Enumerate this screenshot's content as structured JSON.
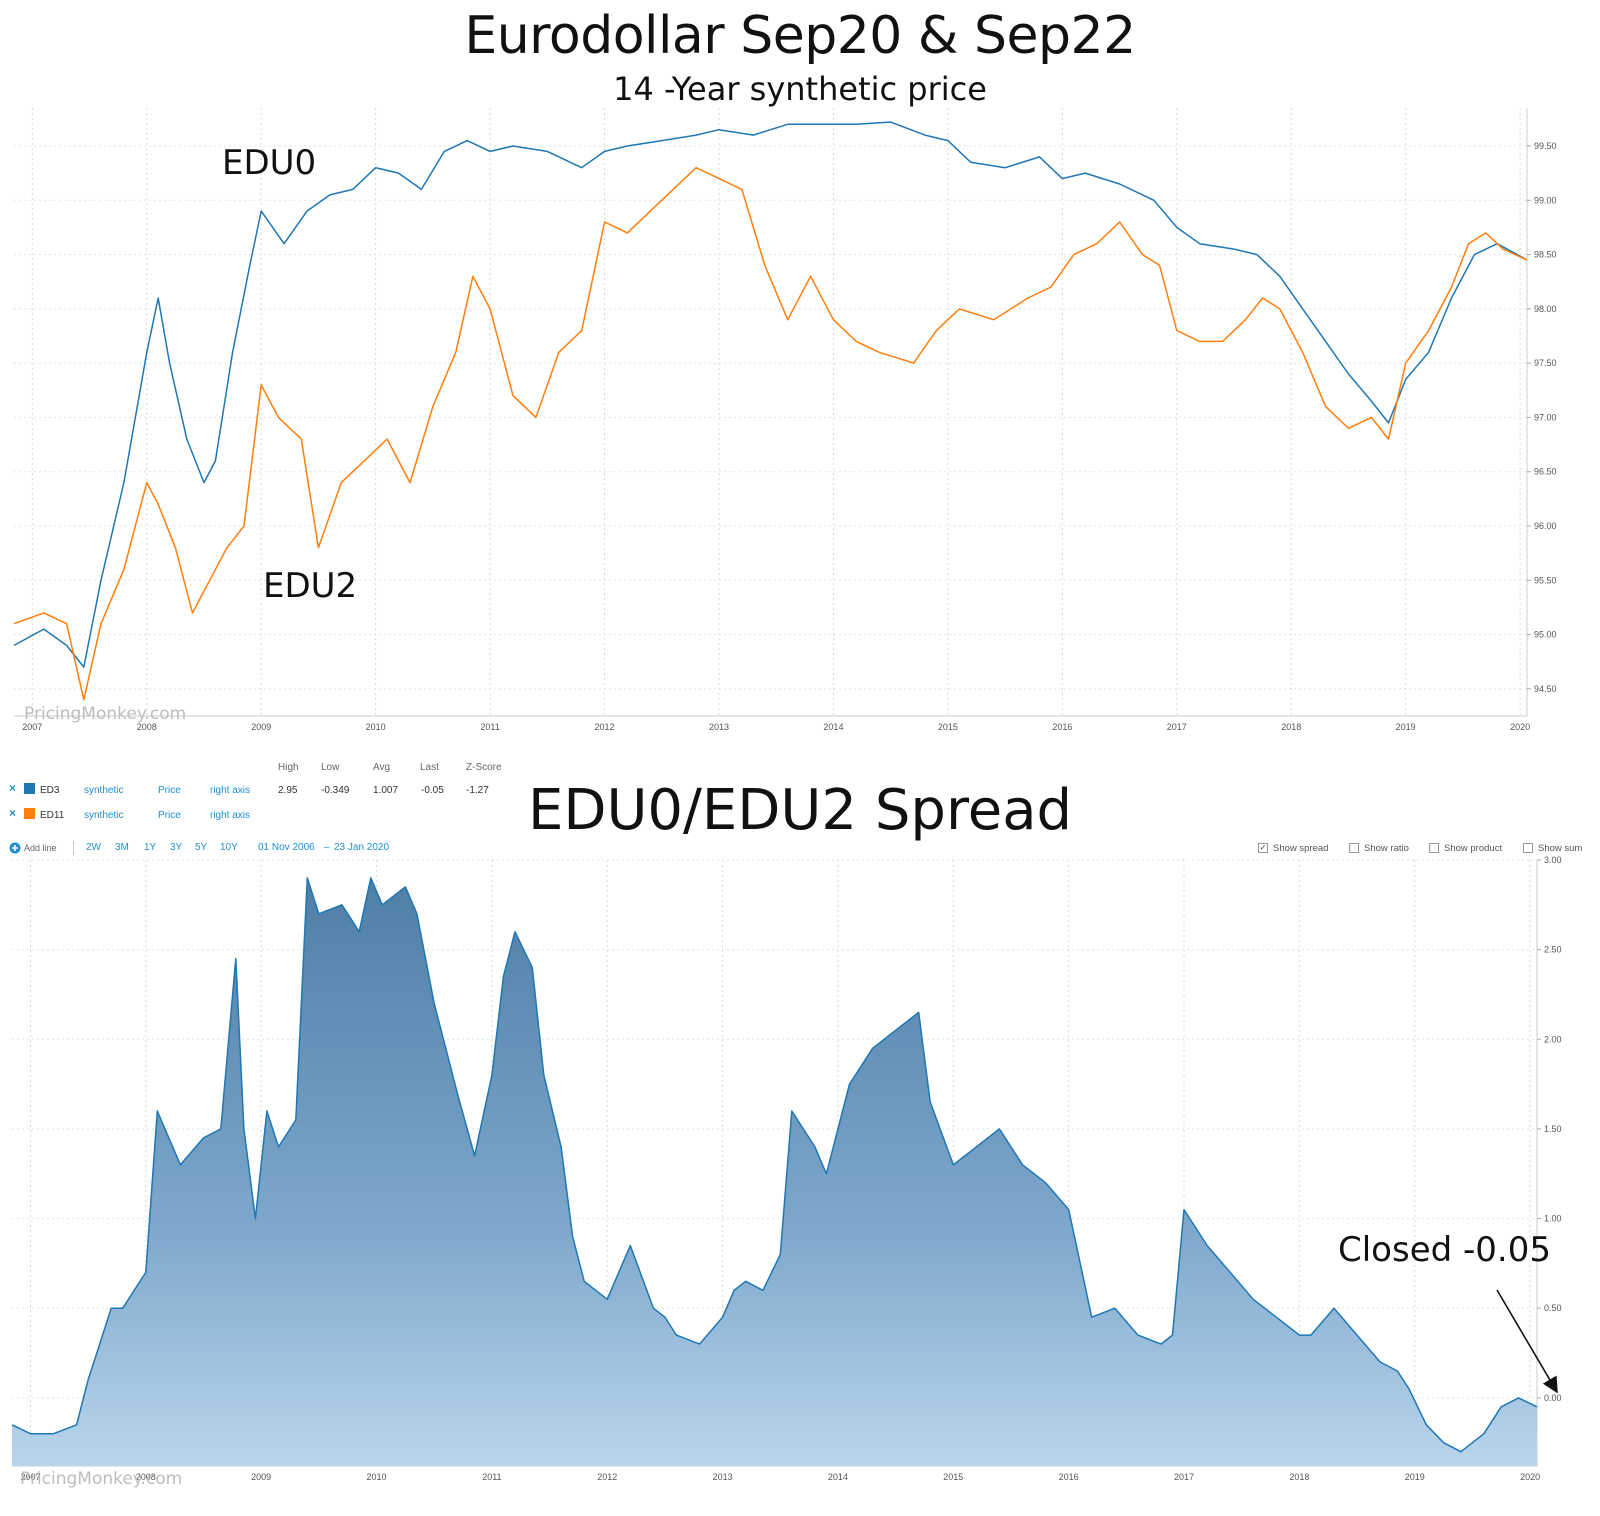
{
  "title": "Eurodollar Sep20 & Sep22",
  "subtitle": "14 -Year synthetic price",
  "annotations": {
    "edu0": "EDU0",
    "edu2": "EDU2",
    "spread_title": "EDU0/EDU2 Spread",
    "closed": "Closed -0.05"
  },
  "watermark": "PricingMonkey.com",
  "legend": {
    "headers": [
      "High",
      "Low",
      "Avg",
      "Last",
      "Z-Score"
    ],
    "rows": [
      {
        "remove": "×",
        "name": "ED3",
        "color": "#1f77b4",
        "type": "synthetic",
        "field": "Price",
        "axis": "right axis",
        "stats": [
          "2.95",
          "-0.349",
          "1.007",
          "-0.05",
          "-1.27"
        ]
      },
      {
        "remove": "×",
        "name": "ED11",
        "color": "#ff7f0e",
        "type": "synthetic",
        "field": "Price",
        "axis": "right axis",
        "stats": []
      }
    ]
  },
  "toolbar": {
    "add_line": "Add line",
    "ranges": [
      "2W",
      "3M",
      "1Y",
      "3Y",
      "5Y",
      "10Y"
    ],
    "date_from": "01 Nov 2006",
    "date_sep": "–",
    "date_to": "23 Jan 2020",
    "options": [
      {
        "label": "Show spread",
        "checked": true
      },
      {
        "label": "Show ratio",
        "checked": false
      },
      {
        "label": "Show product",
        "checked": false
      },
      {
        "label": "Show sum",
        "checked": false
      }
    ]
  },
  "chart_data": [
    {
      "type": "line",
      "x_ticks": [
        "2007",
        "2008",
        "2009",
        "2010",
        "2011",
        "2012",
        "2013",
        "2014",
        "2015",
        "2016",
        "2017",
        "2018",
        "2019",
        "2020"
      ],
      "y_ticks": [
        "94.50",
        "95.00",
        "95.50",
        "96.00",
        "96.50",
        "97.00",
        "97.50",
        "98.00",
        "98.50",
        "99.00",
        "99.50"
      ],
      "xlim": [
        2006.84,
        2020.06
      ],
      "ylim": [
        94.25,
        99.85
      ],
      "grid": true,
      "series": [
        {
          "name": "EDU0",
          "color": "#1f77b4",
          "x": [
            2006.84,
            2007.1,
            2007.3,
            2007.45,
            2007.6,
            2007.8,
            2008.0,
            2008.1,
            2008.2,
            2008.35,
            2008.5,
            2008.6,
            2008.75,
            2008.9,
            2009.0,
            2009.2,
            2009.4,
            2009.6,
            2009.8,
            2010.0,
            2010.2,
            2010.4,
            2010.6,
            2010.8,
            2011.0,
            2011.2,
            2011.5,
            2011.8,
            2012.0,
            2012.2,
            2012.5,
            2012.8,
            2013.0,
            2013.3,
            2013.6,
            2013.9,
            2014.2,
            2014.5,
            2014.8,
            2015.0,
            2015.2,
            2015.5,
            2015.8,
            2016.0,
            2016.2,
            2016.5,
            2016.8,
            2017.0,
            2017.2,
            2017.5,
            2017.7,
            2017.9,
            2018.1,
            2018.3,
            2018.5,
            2018.7,
            2018.85,
            2019.0,
            2019.2,
            2019.4,
            2019.6,
            2019.8,
            2020.06
          ],
          "y": [
            94.9,
            95.05,
            94.9,
            94.7,
            95.5,
            96.4,
            97.6,
            98.1,
            97.5,
            96.8,
            96.4,
            96.6,
            97.6,
            98.4,
            98.9,
            98.6,
            98.9,
            99.05,
            99.1,
            99.3,
            99.25,
            99.1,
            99.45,
            99.55,
            99.45,
            99.5,
            99.45,
            99.3,
            99.45,
            99.5,
            99.55,
            99.6,
            99.65,
            99.6,
            99.7,
            99.7,
            99.7,
            99.72,
            99.6,
            99.55,
            99.35,
            99.3,
            99.4,
            99.2,
            99.25,
            99.15,
            99.0,
            98.75,
            98.6,
            98.55,
            98.5,
            98.3,
            98.0,
            97.7,
            97.4,
            97.15,
            96.95,
            97.35,
            97.6,
            98.1,
            98.5,
            98.6,
            98.45
          ]
        },
        {
          "name": "EDU2",
          "color": "#ff7f0e",
          "x": [
            2006.84,
            2007.1,
            2007.3,
            2007.45,
            2007.6,
            2007.8,
            2008.0,
            2008.1,
            2008.25,
            2008.4,
            2008.55,
            2008.7,
            2008.85,
            2009.0,
            2009.15,
            2009.35,
            2009.5,
            2009.7,
            2009.9,
            2010.1,
            2010.3,
            2010.5,
            2010.7,
            2010.85,
            2011.0,
            2011.2,
            2011.4,
            2011.6,
            2011.8,
            2012.0,
            2012.2,
            2012.4,
            2012.6,
            2012.8,
            2013.0,
            2013.2,
            2013.4,
            2013.6,
            2013.8,
            2014.0,
            2014.2,
            2014.4,
            2014.7,
            2014.9,
            2015.1,
            2015.4,
            2015.7,
            2015.9,
            2016.1,
            2016.3,
            2016.5,
            2016.7,
            2016.85,
            2017.0,
            2017.2,
            2017.4,
            2017.6,
            2017.75,
            2017.9,
            2018.1,
            2018.3,
            2018.5,
            2018.7,
            2018.85,
            2019.0,
            2019.2,
            2019.4,
            2019.55,
            2019.7,
            2019.85,
            2020.06
          ],
          "y": [
            95.1,
            95.2,
            95.1,
            94.4,
            95.1,
            95.6,
            96.4,
            96.2,
            95.8,
            95.2,
            95.5,
            95.8,
            96.0,
            97.3,
            97.0,
            96.8,
            95.8,
            96.4,
            96.6,
            96.8,
            96.4,
            97.1,
            97.6,
            98.3,
            98.0,
            97.2,
            97.0,
            97.6,
            97.8,
            98.8,
            98.7,
            98.9,
            99.1,
            99.3,
            99.2,
            99.1,
            98.4,
            97.9,
            98.3,
            97.9,
            97.7,
            97.6,
            97.5,
            97.8,
            98.0,
            97.9,
            98.1,
            98.2,
            98.5,
            98.6,
            98.8,
            98.5,
            98.4,
            97.8,
            97.7,
            97.7,
            97.9,
            98.1,
            98.0,
            97.6,
            97.1,
            96.9,
            97.0,
            96.8,
            97.5,
            97.8,
            98.2,
            98.6,
            98.7,
            98.55,
            98.45
          ]
        }
      ]
    },
    {
      "type": "area",
      "x_ticks": [
        "2007",
        "2008",
        "2009",
        "2010",
        "2011",
        "2012",
        "2013",
        "2014",
        "2015",
        "2016",
        "2017",
        "2018",
        "2019",
        "2020"
      ],
      "y_ticks": [
        "0.00",
        "0.50",
        "1.00",
        "1.50",
        "2.00",
        "2.50",
        "3.00"
      ],
      "xlim": [
        2006.84,
        2020.06
      ],
      "ylim": [
        -0.38,
        3.0
      ],
      "grid": true,
      "series": [
        {
          "name": "ED3",
          "color": "#1f77b4",
          "x": [
            2006.84,
            2007.0,
            2007.2,
            2007.4,
            2007.5,
            2007.6,
            2007.7,
            2007.8,
            2008.0,
            2008.1,
            2008.3,
            2008.5,
            2008.65,
            2008.78,
            2008.85,
            2008.95,
            2009.05,
            2009.15,
            2009.3,
            2009.4,
            2009.5,
            2009.7,
            2009.85,
            2009.95,
            2010.05,
            2010.15,
            2010.25,
            2010.35,
            2010.5,
            2010.7,
            2010.85,
            2011.0,
            2011.1,
            2011.2,
            2011.35,
            2011.45,
            2011.6,
            2011.7,
            2011.8,
            2012.0,
            2012.2,
            2012.4,
            2012.5,
            2012.6,
            2012.8,
            2013.0,
            2013.1,
            2013.2,
            2013.35,
            2013.5,
            2013.6,
            2013.8,
            2013.9,
            2014.1,
            2014.3,
            2014.5,
            2014.7,
            2014.8,
            2015.0,
            2015.2,
            2015.4,
            2015.6,
            2015.8,
            2016.0,
            2016.2,
            2016.4,
            2016.6,
            2016.8,
            2016.9,
            2017.0,
            2017.2,
            2017.4,
            2017.6,
            2017.8,
            2018.0,
            2018.1,
            2018.3,
            2018.5,
            2018.7,
            2018.85,
            2018.95,
            2019.1,
            2019.25,
            2019.4,
            2019.6,
            2019.75,
            2019.9,
            2020.06
          ],
          "y": [
            -0.15,
            -0.2,
            -0.2,
            -0.15,
            0.1,
            0.3,
            0.5,
            0.5,
            0.7,
            1.6,
            1.3,
            1.45,
            1.5,
            2.45,
            1.5,
            1.0,
            1.6,
            1.4,
            1.55,
            2.9,
            2.7,
            2.75,
            2.6,
            2.9,
            2.75,
            2.8,
            2.85,
            2.7,
            2.2,
            1.7,
            1.35,
            1.8,
            2.35,
            2.6,
            2.4,
            1.8,
            1.4,
            0.9,
            0.65,
            0.55,
            0.85,
            0.5,
            0.45,
            0.35,
            0.3,
            0.45,
            0.6,
            0.65,
            0.6,
            0.8,
            1.6,
            1.4,
            1.25,
            1.75,
            1.95,
            2.05,
            2.15,
            1.65,
            1.3,
            1.4,
            1.5,
            1.3,
            1.2,
            1.05,
            0.45,
            0.5,
            0.35,
            0.3,
            0.35,
            1.05,
            0.85,
            0.7,
            0.55,
            0.45,
            0.35,
            0.35,
            0.5,
            0.35,
            0.2,
            0.15,
            0.05,
            -0.15,
            -0.25,
            -0.3,
            -0.2,
            -0.05,
            0.0,
            -0.05
          ]
        }
      ]
    }
  ]
}
